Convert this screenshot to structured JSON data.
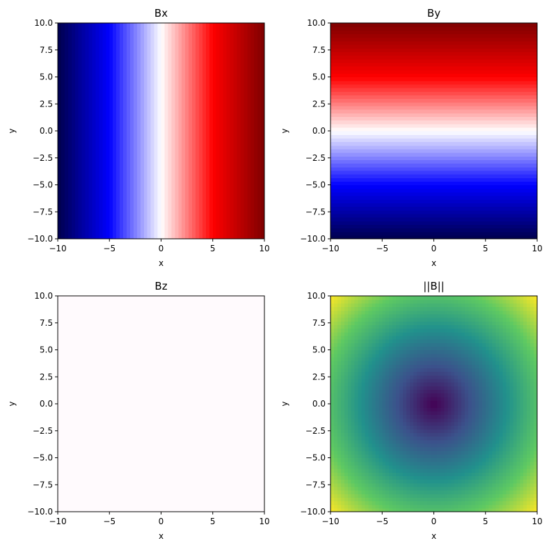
{
  "chart_data": [
    {
      "type": "heatmap",
      "title": "Bx",
      "xlabel": "x",
      "ylabel": "y",
      "xlim": [
        -10,
        10
      ],
      "ylim": [
        -10,
        10
      ],
      "xticks": [
        -10,
        -5,
        0,
        5,
        10
      ],
      "yticks": [
        -10.0,
        -7.5,
        -5.0,
        -2.5,
        0.0,
        2.5,
        5.0,
        7.5,
        10.0
      ],
      "xtick_labels": [
        "−10",
        "−5",
        "0",
        "5",
        "10"
      ],
      "ytick_labels": [
        "−10.0",
        "−7.5",
        "−5.0",
        "−2.5",
        "0.0",
        "2.5",
        "5.0",
        "7.5",
        "10.0"
      ],
      "field": "x",
      "colormap": "seismic",
      "vmin": -10,
      "vmax": 10
    },
    {
      "type": "heatmap",
      "title": "By",
      "xlabel": "x",
      "ylabel": "y",
      "xlim": [
        -10,
        10
      ],
      "ylim": [
        -10,
        10
      ],
      "xticks": [
        -10,
        -5,
        0,
        5,
        10
      ],
      "yticks": [
        -10.0,
        -7.5,
        -5.0,
        -2.5,
        0.0,
        2.5,
        5.0,
        7.5,
        10.0
      ],
      "xtick_labels": [
        "−10",
        "−5",
        "0",
        "5",
        "10"
      ],
      "ytick_labels": [
        "−10.0",
        "−7.5",
        "−5.0",
        "−2.5",
        "0.0",
        "2.5",
        "5.0",
        "7.5",
        "10.0"
      ],
      "field": "y",
      "colormap": "seismic",
      "vmin": -10,
      "vmax": 10
    },
    {
      "type": "heatmap",
      "title": "Bz",
      "xlabel": "x",
      "ylabel": "y",
      "xlim": [
        -10,
        10
      ],
      "ylim": [
        -10,
        10
      ],
      "xticks": [
        -10,
        -5,
        0,
        5,
        10
      ],
      "yticks": [
        -10.0,
        -7.5,
        -5.0,
        -2.5,
        0.0,
        2.5,
        5.0,
        7.5,
        10.0
      ],
      "xtick_labels": [
        "−10",
        "−5",
        "0",
        "5",
        "10"
      ],
      "ytick_labels": [
        "−10.0",
        "−7.5",
        "−5.0",
        "−2.5",
        "0.0",
        "2.5",
        "5.0",
        "7.5",
        "10.0"
      ],
      "field": "zero",
      "colormap": "uniform",
      "fill_color": "#fffafd"
    },
    {
      "type": "heatmap",
      "title": "||B||",
      "xlabel": "x",
      "ylabel": "y",
      "xlim": [
        -10,
        10
      ],
      "ylim": [
        -10,
        10
      ],
      "xticks": [
        -10,
        -5,
        0,
        5,
        10
      ],
      "yticks": [
        -10.0,
        -7.5,
        -5.0,
        -2.5,
        0.0,
        2.5,
        5.0,
        7.5,
        10.0
      ],
      "xtick_labels": [
        "−10",
        "−5",
        "0",
        "5",
        "10"
      ],
      "ytick_labels": [
        "−10.0",
        "−7.5",
        "−5.0",
        "−2.5",
        "0.0",
        "2.5",
        "5.0",
        "7.5",
        "10.0"
      ],
      "field": "magnitude",
      "colormap": "viridis",
      "vmin": 0,
      "vmax": 14.14
    }
  ],
  "colors": {
    "seismic": [
      "#00004c",
      "#0000ff",
      "#ffffff",
      "#ff0000",
      "#7f0000"
    ],
    "viridis": [
      "#440154",
      "#3b528b",
      "#21918c",
      "#5ec962",
      "#fde725"
    ]
  }
}
